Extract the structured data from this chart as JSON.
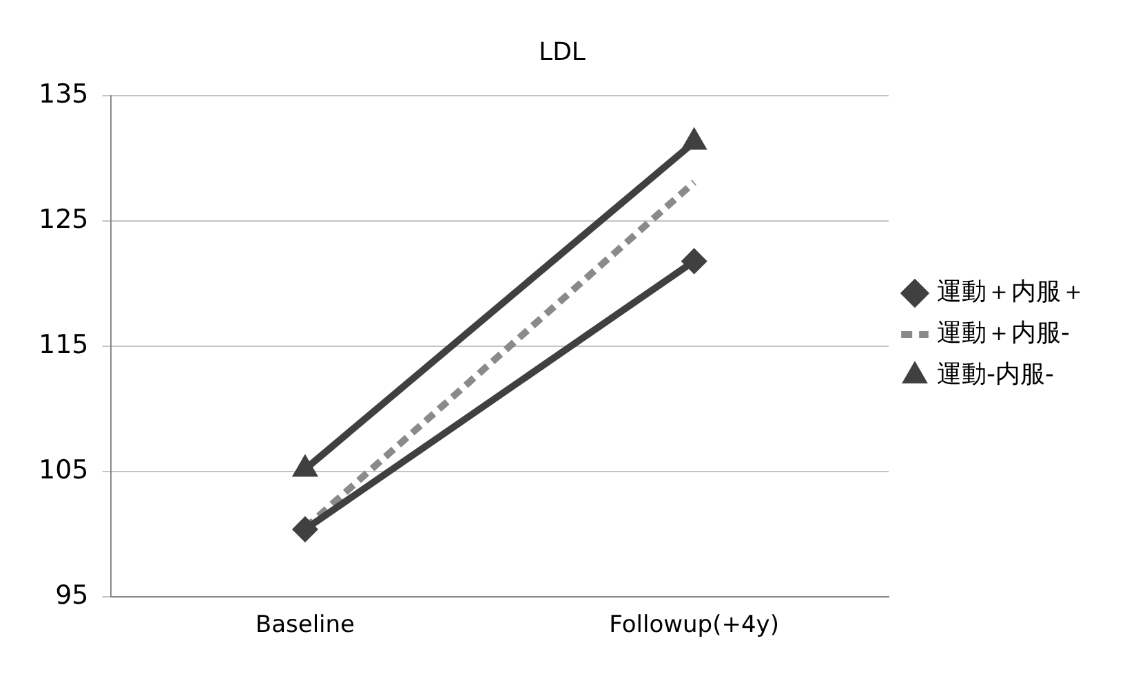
{
  "chart_data": {
    "type": "line",
    "title": "LDL",
    "categories": [
      "Baseline",
      "Followup(+4y)"
    ],
    "series": [
      {
        "name": "運動＋内服＋",
        "color": "#404040",
        "values": [
          100.4,
          121.8
        ],
        "marker": "diamond",
        "line_style": "solid"
      },
      {
        "name": "運動＋内服-",
        "color": "#8a8a8a",
        "values": [
          100.5,
          128.1
        ],
        "marker": "none",
        "line_style": "dashed"
      },
      {
        "name": "運動-内服-",
        "color": "#404040",
        "values": [
          105.2,
          131.3
        ],
        "marker": "triangle",
        "line_style": "solid"
      }
    ],
    "ylim": [
      95,
      135
    ],
    "yticks": [
      95,
      105,
      115,
      125,
      135
    ],
    "grid": "y",
    "legend": "right"
  }
}
